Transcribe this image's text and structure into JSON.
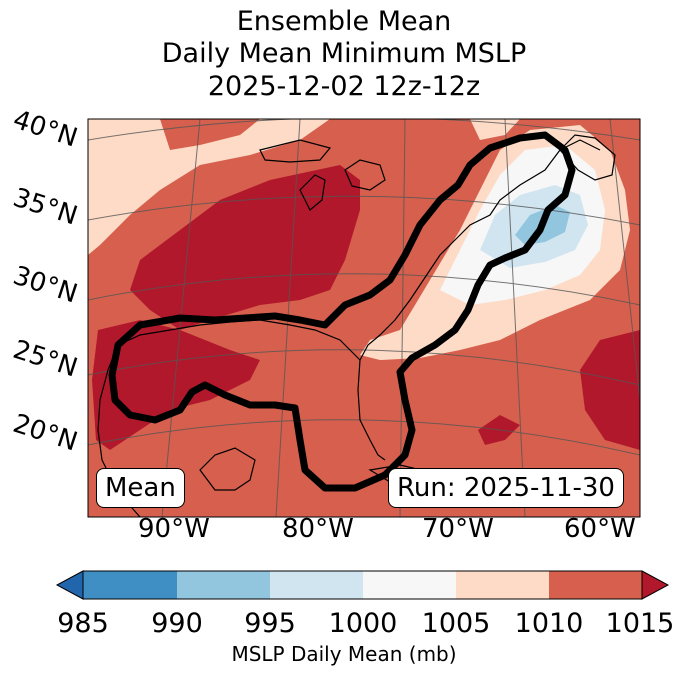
{
  "title": {
    "line1": "Ensemble Mean",
    "line2": "Daily Mean Minimum MSLP",
    "line3": "2025-12-02 12z-12z"
  },
  "map": {
    "lat_labels": [
      "40°N",
      "35°N",
      "30°N",
      "25°N",
      "20°N"
    ],
    "lon_labels": [
      "90°W",
      "80°W",
      "70°W",
      "60°W"
    ],
    "left_box": "Mean",
    "right_box": "Run: 2025-11-30"
  },
  "colorbar": {
    "ticks": [
      "985",
      "990",
      "995",
      "1000",
      "1005",
      "1010",
      "1015"
    ],
    "label": "MSLP Daily Mean (mb)",
    "colors": [
      "#2166ac",
      "#3f8fc5",
      "#92c5de",
      "#d1e5f0",
      "#f7f7f7",
      "#fddbc7",
      "#d6604d",
      "#b2182b"
    ]
  },
  "colors": {
    "bg_1010": "#d6604d",
    "high_1015": "#b2182b",
    "band_1005": "#fddbc7",
    "band_1000": "#f7f7f7",
    "band_995": "#d1e5f0",
    "band_990": "#92c5de",
    "contour": "#000000"
  }
}
